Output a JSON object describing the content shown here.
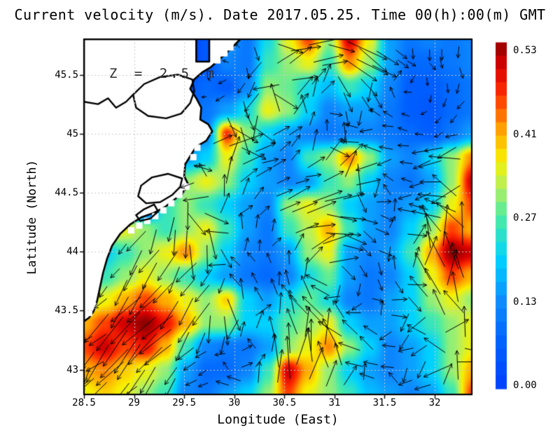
{
  "title": "Current velocity (m/s). Date 2017.05.25. Time 00(h):00(m) GMT",
  "colors": {
    "background": "#ffffff",
    "land": "#ffffff",
    "coast": "#000000",
    "gridline": "#c9c9c9",
    "arrow": "#000000",
    "text": "#000000"
  },
  "chart_data": {
    "type": "heatmap",
    "overlay": "quiver",
    "title": "Current velocity (m/s). Date 2017.05.25. Time 00(h):00(m) GMT",
    "annotation": "Z = 2.5 m",
    "units": "m/s",
    "grid": true,
    "legend_position": "right-colorbar",
    "x": {
      "label": "Longitude (East)",
      "min": 28.5,
      "max": 32.37,
      "ticks": [
        "28.5",
        "29",
        "29.5",
        "30",
        "30.5",
        "31",
        "31.5",
        "32"
      ]
    },
    "y": {
      "label": "Latitude (North)",
      "min": 42.79,
      "max": 45.8,
      "ticks": [
        "45.5",
        "45",
        "44.5",
        "44",
        "43.5",
        "43"
      ]
    },
    "colorbar": {
      "labels": [
        "0.53",
        "0.41",
        "0.27",
        "0.13",
        "0.00"
      ],
      "values": [
        0.53,
        0.41,
        0.27,
        0.13,
        0.0
      ],
      "min": 0.0,
      "max": 0.53
    },
    "value_anchors": [
      [
        0.0,
        0.0
      ],
      [
        0.13,
        0.25
      ],
      [
        0.27,
        0.5
      ],
      [
        0.41,
        0.75
      ],
      [
        0.53,
        1.0
      ]
    ],
    "colormap": [
      [
        0.0,
        "#0040ff"
      ],
      [
        0.125,
        "#0060ff"
      ],
      [
        0.25,
        "#0e8cff"
      ],
      [
        0.375,
        "#00d2ff"
      ],
      [
        0.5,
        "#50eca0"
      ],
      [
        0.58,
        "#b4f060"
      ],
      [
        0.66,
        "#f8f000"
      ],
      [
        0.75,
        "#ffa000"
      ],
      [
        0.85,
        "#ff3000"
      ],
      [
        0.93,
        "#d80000"
      ],
      [
        1.0,
        "#900000"
      ]
    ],
    "speed_field": {
      "nx": 20,
      "ny": 16,
      "order": "rows north to south, cols west to east",
      "values": [
        [
          0,
          0,
          0,
          0,
          0,
          0,
          0.05,
          0.15,
          0.1,
          0.22,
          0.35,
          0.45,
          0.3,
          0.5,
          0.35,
          0.15,
          0.1,
          0.12,
          0.1,
          0.12
        ],
        [
          0,
          0,
          0,
          0,
          0,
          0,
          0.05,
          0.12,
          0.1,
          0.25,
          0.3,
          0.35,
          0.25,
          0.42,
          0.3,
          0.15,
          0.08,
          0.08,
          0.1,
          0.12
        ],
        [
          0,
          0,
          0,
          0,
          0,
          0.05,
          0.08,
          0.06,
          0.12,
          0.3,
          0.28,
          0.22,
          0.18,
          0.25,
          0.2,
          0.12,
          0.06,
          0.06,
          0.08,
          0.1
        ],
        [
          0,
          0,
          0,
          0,
          0,
          0.05,
          0.1,
          0.15,
          0.22,
          0.35,
          0.3,
          0.2,
          0.12,
          0.15,
          0.15,
          0.1,
          0.06,
          0.05,
          0.08,
          0.1
        ],
        [
          0,
          0,
          0,
          0,
          0,
          0.05,
          0.12,
          0.46,
          0.3,
          0.2,
          0.15,
          0.12,
          0.1,
          0.12,
          0.12,
          0.1,
          0.08,
          0.06,
          0.1,
          0.15
        ],
        [
          0,
          0,
          0,
          0,
          0,
          0.15,
          0.2,
          0.35,
          0.25,
          0.15,
          0.12,
          0.25,
          0.3,
          0.42,
          0.3,
          0.15,
          0.12,
          0.2,
          0.3,
          0.42
        ],
        [
          0,
          0,
          0,
          0,
          0,
          0.3,
          0.35,
          0.3,
          0.2,
          0.15,
          0.12,
          0.15,
          0.25,
          0.3,
          0.2,
          0.12,
          0.1,
          0.15,
          0.3,
          0.5
        ],
        [
          0,
          0,
          0,
          0,
          0.25,
          0.3,
          0.25,
          0.2,
          0.15,
          0.12,
          0.3,
          0.35,
          0.3,
          0.2,
          0.15,
          0.12,
          0.15,
          0.2,
          0.35,
          0.45
        ],
        [
          0,
          0.4,
          0.35,
          0.3,
          0.25,
          0.3,
          0.35,
          0.25,
          0.15,
          0.1,
          0.25,
          0.32,
          0.4,
          0.25,
          0.15,
          0.12,
          0.2,
          0.3,
          0.45,
          0.4
        ],
        [
          0,
          0.2,
          0.25,
          0.3,
          0.35,
          0.42,
          0.3,
          0.2,
          0.12,
          0.1,
          0.15,
          0.3,
          0.35,
          0.15,
          0.12,
          0.15,
          0.25,
          0.4,
          0.53,
          0.5
        ],
        [
          0.15,
          0.25,
          0.3,
          0.35,
          0.3,
          0.25,
          0.2,
          0.15,
          0.1,
          0.08,
          0.12,
          0.22,
          0.28,
          0.15,
          0.1,
          0.12,
          0.2,
          0.35,
          0.45,
          0.4
        ],
        [
          0.3,
          0.35,
          0.4,
          0.45,
          0.4,
          0.35,
          0.3,
          0.38,
          0.2,
          0.15,
          0.22,
          0.28,
          0.22,
          0.12,
          0.1,
          0.15,
          0.2,
          0.3,
          0.35,
          0.3
        ],
        [
          0.4,
          0.45,
          0.5,
          0.53,
          0.48,
          0.4,
          0.3,
          0.3,
          0.2,
          0.2,
          0.27,
          0.3,
          0.35,
          0.2,
          0.15,
          0.15,
          0.2,
          0.25,
          0.3,
          0.35
        ],
        [
          0.45,
          0.5,
          0.45,
          0.48,
          0.4,
          0.25,
          0.12,
          0.1,
          0.1,
          0.15,
          0.3,
          0.35,
          0.42,
          0.3,
          0.2,
          0.12,
          0.15,
          0.2,
          0.3,
          0.35
        ],
        [
          0.4,
          0.42,
          0.38,
          0.35,
          0.3,
          0.15,
          0.08,
          0.08,
          0.12,
          0.25,
          0.5,
          0.4,
          0.3,
          0.2,
          0.15,
          0.12,
          0.15,
          0.2,
          0.3,
          0.4
        ],
        [
          0.35,
          0.38,
          0.35,
          0.3,
          0.25,
          0.12,
          0.1,
          0.15,
          0.2,
          0.3,
          0.45,
          0.35,
          0.3,
          0.25,
          0.18,
          0.15,
          0.12,
          0.15,
          0.25,
          0.45
        ]
      ]
    },
    "flow": {
      "vortices": [
        {
          "lon": 30.35,
          "lat": 45.1,
          "spin": 1,
          "s": 0.75,
          "r": 0.45
        },
        {
          "lon": 30.95,
          "lat": 45.52,
          "spin": -1,
          "s": 0.9,
          "r": 0.5
        },
        {
          "lon": 31.9,
          "lat": 45.3,
          "spin": -1,
          "s": 0.5,
          "r": 0.65
        },
        {
          "lon": 30.95,
          "lat": 43.85,
          "spin": -1,
          "s": 0.85,
          "r": 0.6
        },
        {
          "lon": 30.0,
          "lat": 43.7,
          "spin": 1,
          "s": 0.5,
          "r": 0.45
        },
        {
          "lon": 31.55,
          "lat": 43.35,
          "spin": -1,
          "s": 0.55,
          "r": 0.5
        },
        {
          "lon": 29.75,
          "lat": 44.45,
          "spin": 1,
          "s": 0.6,
          "r": 0.4
        }
      ],
      "drifts": [
        {
          "lon": 29.15,
          "lat": 43.3,
          "u": -0.85,
          "v": -0.9,
          "r": 0.8
        },
        {
          "lon": 28.85,
          "lat": 44.05,
          "u": -0.35,
          "v": -0.75,
          "r": 0.45
        },
        {
          "lon": 30.85,
          "lat": 45.62,
          "u": 0.95,
          "v": -0.25,
          "r": 0.55
        },
        {
          "lon": 31.95,
          "lat": 44.95,
          "u": -0.6,
          "v": -0.1,
          "r": 0.7
        },
        {
          "lon": 30.25,
          "lat": 44.62,
          "u": 0.55,
          "v": 0.5,
          "r": 0.5
        },
        {
          "lon": 32.15,
          "lat": 43.85,
          "u": -0.1,
          "v": 0.85,
          "r": 0.5
        },
        {
          "lon": 30.32,
          "lat": 45.3,
          "u": 0.05,
          "v": -0.5,
          "r": 0.35
        },
        {
          "lon": 32.18,
          "lat": 45.62,
          "u": 0.1,
          "v": -0.65,
          "r": 0.45
        },
        {
          "lon": 30.6,
          "lat": 42.95,
          "u": 0.25,
          "v": 0.95,
          "r": 0.5
        },
        {
          "lon": 31.05,
          "lat": 44.15,
          "u": 0.7,
          "v": -0.1,
          "r": 0.4
        }
      ]
    },
    "coastline": [
      [
        28.5,
        45.8
      ],
      [
        29.62,
        45.8
      ],
      [
        29.62,
        45.61
      ],
      [
        29.75,
        45.61
      ],
      [
        29.75,
        45.8
      ],
      [
        30.06,
        45.8
      ],
      [
        29.94,
        45.7
      ],
      [
        29.84,
        45.62
      ],
      [
        29.76,
        45.56
      ],
      [
        29.68,
        45.52
      ],
      [
        29.6,
        45.46
      ],
      [
        29.56,
        45.38
      ],
      [
        29.62,
        45.3
      ],
      [
        29.67,
        45.22
      ],
      [
        29.66,
        45.12
      ],
      [
        29.74,
        45.08
      ],
      [
        29.78,
        45.02
      ],
      [
        29.72,
        44.94
      ],
      [
        29.62,
        44.89
      ],
      [
        29.56,
        44.81
      ],
      [
        29.51,
        44.74
      ],
      [
        29.5,
        44.64
      ],
      [
        29.54,
        44.57
      ],
      [
        29.48,
        44.49
      ],
      [
        29.4,
        44.44
      ],
      [
        29.31,
        44.38
      ],
      [
        29.2,
        44.33
      ],
      [
        29.07,
        44.29
      ],
      [
        28.96,
        44.23
      ],
      [
        28.86,
        44.15
      ],
      [
        28.78,
        44.05
      ],
      [
        28.73,
        43.94
      ],
      [
        28.69,
        43.82
      ],
      [
        28.66,
        43.7
      ],
      [
        28.63,
        43.58
      ],
      [
        28.6,
        43.5
      ],
      [
        28.55,
        43.44
      ],
      [
        28.5,
        43.41
      ]
    ],
    "lagoons": [
      [
        [
          29.58,
          45.46
        ],
        [
          29.44,
          45.5
        ],
        [
          29.26,
          45.48
        ],
        [
          29.1,
          45.42
        ],
        [
          28.99,
          45.33
        ],
        [
          29.02,
          45.22
        ],
        [
          29.14,
          45.15
        ],
        [
          29.32,
          45.13
        ],
        [
          29.47,
          45.17
        ],
        [
          29.56,
          45.26
        ],
        [
          29.6,
          45.36
        ]
      ],
      [
        [
          29.48,
          44.62
        ],
        [
          29.34,
          44.66
        ],
        [
          29.18,
          44.63
        ],
        [
          29.07,
          44.56
        ],
        [
          29.04,
          44.47
        ],
        [
          29.12,
          44.41
        ],
        [
          29.26,
          44.42
        ],
        [
          29.38,
          44.48
        ],
        [
          29.46,
          44.55
        ]
      ],
      [
        [
          29.2,
          44.4
        ],
        [
          29.1,
          44.36
        ],
        [
          29.02,
          44.31
        ],
        [
          29.06,
          44.26
        ],
        [
          29.16,
          44.28
        ],
        [
          29.24,
          44.34
        ]
      ]
    ],
    "coast_lines": [
      [
        [
          28.5,
          45.27
        ],
        [
          28.64,
          45.25
        ],
        [
          28.74,
          45.3
        ],
        [
          28.82,
          45.22
        ],
        [
          28.92,
          45.27
        ],
        [
          28.99,
          45.33
        ]
      ]
    ],
    "coast_steps": [
      [
        28.94,
        44.16
      ],
      [
        29.02,
        44.2
      ],
      [
        29.1,
        44.24
      ],
      [
        29.18,
        44.28
      ],
      [
        29.26,
        44.33
      ],
      [
        29.34,
        44.39
      ],
      [
        29.42,
        44.46
      ],
      [
        29.49,
        44.53
      ],
      [
        29.8,
        45.6
      ],
      [
        29.87,
        45.66
      ],
      [
        29.93,
        45.71
      ],
      [
        28.52,
        43.46
      ],
      [
        28.56,
        43.52
      ],
      [
        28.54,
        43.6
      ],
      [
        29.56,
        44.78
      ],
      [
        29.6,
        44.86
      ]
    ],
    "coast_max_lon": [
      [
        45.8,
        30.06
      ],
      [
        45.62,
        29.88
      ],
      [
        45.52,
        29.76
      ],
      [
        45.42,
        29.62
      ],
      [
        45.3,
        29.62
      ],
      [
        45.2,
        29.68
      ],
      [
        45.1,
        29.74
      ],
      [
        45.0,
        29.8
      ],
      [
        44.92,
        29.66
      ],
      [
        44.8,
        29.56
      ],
      [
        44.66,
        29.52
      ],
      [
        44.56,
        29.56
      ],
      [
        44.47,
        29.5
      ],
      [
        44.4,
        29.44
      ],
      [
        44.32,
        29.3
      ],
      [
        44.26,
        29.16
      ],
      [
        44.18,
        28.98
      ],
      [
        44.06,
        28.86
      ],
      [
        43.92,
        28.78
      ],
      [
        43.76,
        28.71
      ],
      [
        43.6,
        28.66
      ],
      [
        43.48,
        28.6
      ],
      [
        43.4,
        28.52
      ],
      [
        43.34,
        28.44
      ],
      [
        42.79,
        28.44
      ]
    ]
  }
}
